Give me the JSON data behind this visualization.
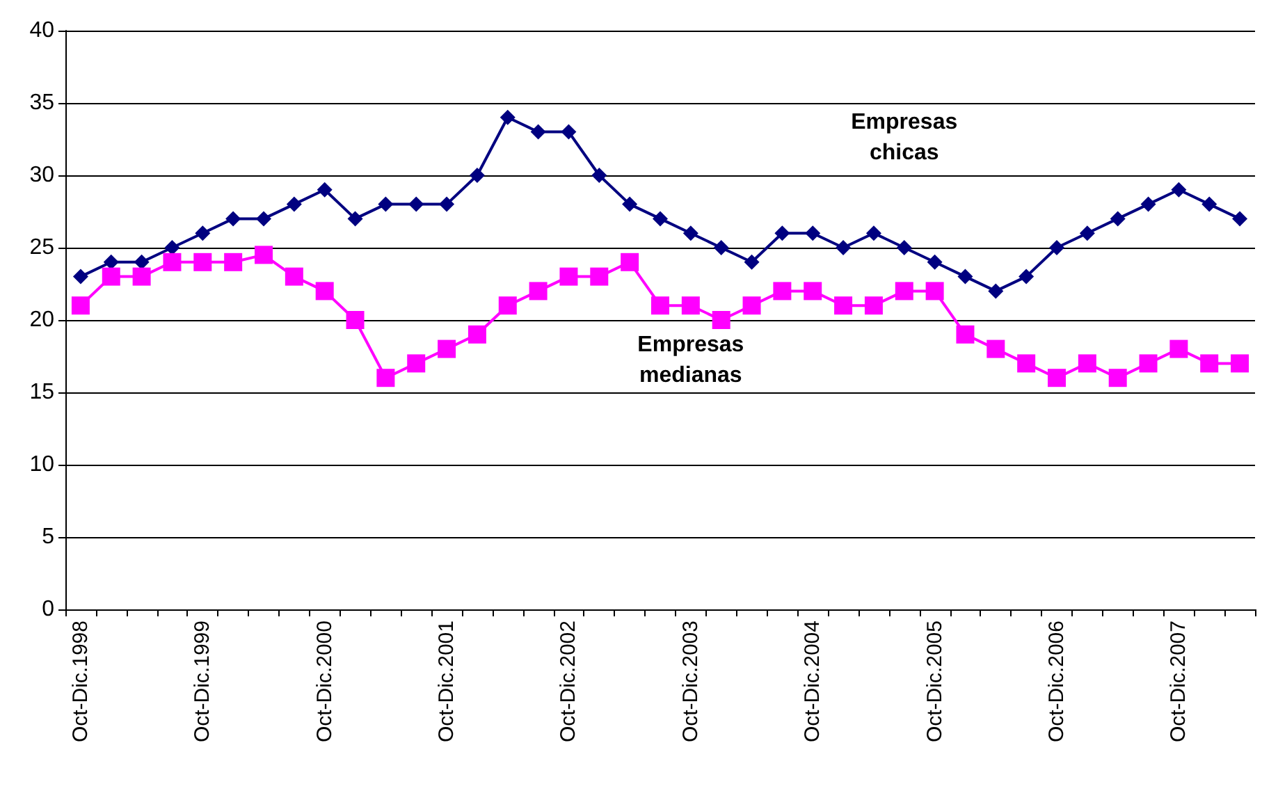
{
  "chart_data": {
    "type": "line",
    "categories": [
      "Oct-Dic.1998",
      null,
      null,
      null,
      "Oct-Dic.1999",
      null,
      null,
      null,
      "Oct-Dic.2000",
      null,
      null,
      null,
      "Oct-Dic.2001",
      null,
      null,
      null,
      "Oct-Dic.2002",
      null,
      null,
      null,
      "Oct-Dic.2003",
      null,
      null,
      null,
      "Oct-Dic.2004",
      null,
      null,
      null,
      "Oct-Dic.2005",
      null,
      null,
      null,
      "Oct-Dic.2006",
      null,
      null,
      null,
      "Oct-Dic.2007",
      null,
      null
    ],
    "series": [
      {
        "name": "Empresas chicas",
        "color": "#000080",
        "marker": "diamond",
        "values": [
          23,
          24,
          24,
          25,
          26,
          27,
          27,
          28,
          29,
          27,
          28,
          28,
          28,
          30,
          34,
          33,
          33,
          30,
          28,
          27,
          26,
          25,
          24,
          26,
          26,
          25,
          26,
          25,
          24,
          23,
          22,
          23,
          25,
          26,
          27,
          28,
          29,
          28,
          27
        ]
      },
      {
        "name": "Empresas medianas",
        "color": "#ff00ff",
        "marker": "square",
        "values": [
          21,
          23,
          23,
          24,
          24,
          24,
          24.5,
          23,
          22,
          20,
          16,
          17,
          18,
          19,
          21,
          22,
          23,
          23,
          24,
          21,
          21,
          20,
          21,
          22,
          22,
          21,
          21,
          22,
          22,
          19,
          18,
          17,
          16,
          17,
          16,
          17,
          18,
          17,
          17
        ]
      }
    ],
    "ylim": [
      0,
      40
    ],
    "yticks": [
      0,
      5,
      10,
      15,
      20,
      25,
      30,
      35,
      40
    ],
    "grid": "y",
    "legend": false
  }
}
